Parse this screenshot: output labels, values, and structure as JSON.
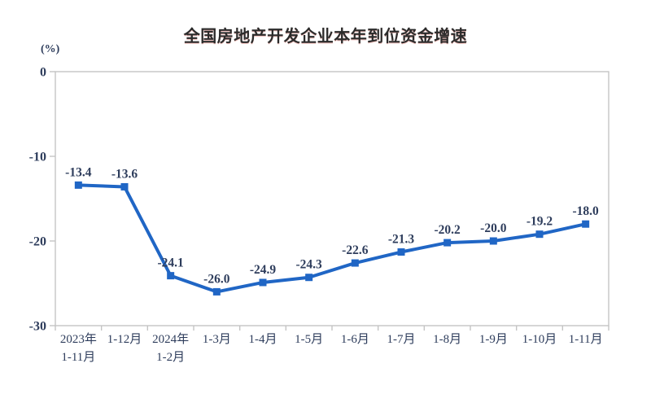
{
  "chart_data": {
    "type": "line",
    "title": "全国房地产开发企业本年到位资金增速",
    "unit_label": "(%)",
    "categories": [
      [
        "2023年",
        "1-11月"
      ],
      [
        "1-12月"
      ],
      [
        "2024年",
        "1-2月"
      ],
      [
        "1-3月"
      ],
      [
        "1-4月"
      ],
      [
        "1-5月"
      ],
      [
        "1-6月"
      ],
      [
        "1-7月"
      ],
      [
        "1-8月"
      ],
      [
        "1-9月"
      ],
      [
        "1-10月"
      ],
      [
        "1-11月"
      ]
    ],
    "values": [
      -13.4,
      -13.6,
      -24.1,
      -26.0,
      -24.9,
      -24.3,
      -22.6,
      -21.3,
      -20.2,
      -20.0,
      -19.2,
      -18.0
    ],
    "data_labels": [
      "-13.4",
      "-13.6",
      "-24.1",
      "-26.0",
      "-24.9",
      "-24.3",
      "-22.6",
      "-21.3",
      "-20.2",
      "-20.0",
      "-19.2",
      "-18.0"
    ],
    "ylim": [
      -30,
      0
    ],
    "yticks": [
      0,
      -10,
      -20,
      -30
    ],
    "grid": false,
    "legend": false,
    "line_color": "#2066c5",
    "axis_color": "#c4c4c4",
    "label_color": "#2e3d5c",
    "xlabel": "",
    "ylabel": ""
  }
}
